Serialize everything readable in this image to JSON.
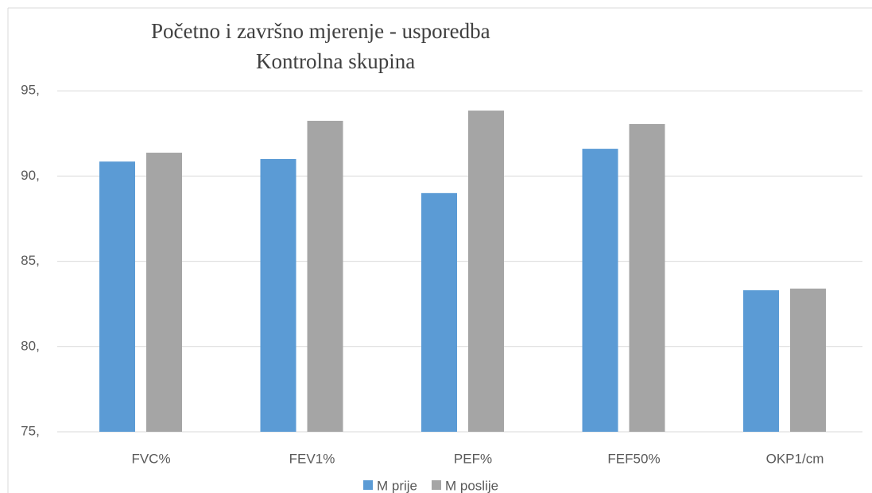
{
  "chart_data": {
    "type": "bar",
    "title": [
      "Početno i završno mjerenje - usporedba",
      "Kontrolna skupina"
    ],
    "categories": [
      "FVC%",
      "FEV1%",
      "PEF%",
      "FEF50%",
      "OKP1/cm"
    ],
    "series": [
      {
        "name": "M prije",
        "color": "#5b9bd5",
        "values": [
          90.85,
          91.0,
          89.0,
          91.6,
          83.3
        ]
      },
      {
        "name": "M poslije",
        "color": "#a5a5a5",
        "values": [
          91.37,
          93.24,
          93.84,
          93.05,
          83.4
        ]
      }
    ],
    "ylim": [
      75,
      97
    ],
    "yticks": [
      {
        "value": 75,
        "label": "75,"
      },
      {
        "value": 80,
        "label": "80,"
      },
      {
        "value": 85,
        "label": "85,"
      },
      {
        "value": 90,
        "label": "90,"
      },
      {
        "value": 95,
        "label": "95,"
      }
    ],
    "grid": true,
    "legend": "bottom"
  }
}
